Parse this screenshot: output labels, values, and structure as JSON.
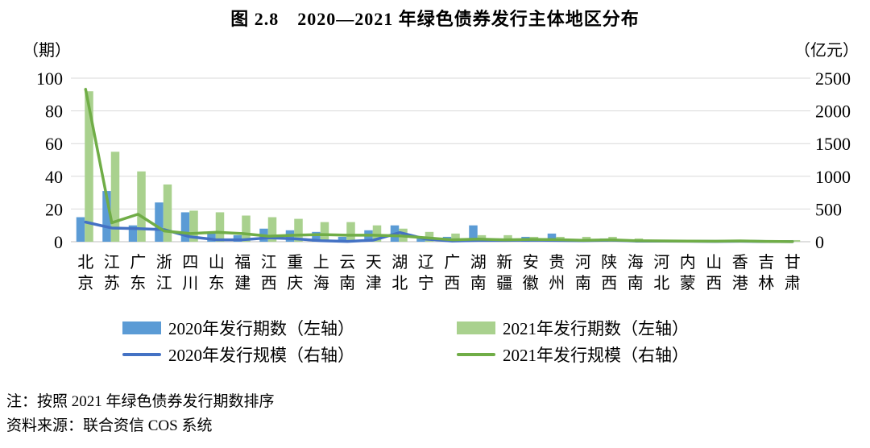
{
  "title": "图 2.8　2020—2021 年绿色债券发行主体地区分布",
  "notes": {
    "sort_note": "注：按照 2021 年绿色债券发行期数排序",
    "source_note": "资料来源：联合资信 COS 系统"
  },
  "chart_data": {
    "type": "bar",
    "subtype": "grouped-bars-with-overlaid-lines-dual-axis",
    "title": "图 2.8　2020—2021 年绿色债券发行主体地区分布",
    "grid": true,
    "legend_position": "bottom",
    "colors": {
      "bar_2020": "#5B9BD5",
      "bar_2021": "#A9D18E",
      "line_2020": "#4472C4",
      "line_2021": "#70AD47",
      "gridline": "#D9D9D9",
      "baseline": "#BFBFBF"
    },
    "left_axis": {
      "unit_label": "（期）",
      "ticks": [
        0,
        20,
        40,
        60,
        80,
        100
      ],
      "range": [
        0,
        100
      ]
    },
    "right_axis": {
      "unit_label": "（亿元）",
      "ticks": [
        0,
        500,
        1000,
        1500,
        2000,
        2500
      ],
      "range": [
        0,
        2500
      ]
    },
    "categories": [
      "北京",
      "江苏",
      "广东",
      "浙江",
      "四川",
      "山东",
      "福建",
      "江西",
      "重庆",
      "上海",
      "云南",
      "天津",
      "湖北",
      "辽宁",
      "广西",
      "湖南",
      "新疆",
      "安徽",
      "贵州",
      "河南",
      "陕西",
      "海南",
      "河北",
      "内蒙",
      "山西",
      "香港",
      "吉林",
      "甘肃"
    ],
    "series": [
      {
        "name": "2020年发行期数（左轴）",
        "type": "bar",
        "axis": "left",
        "color": "#5B9BD5",
        "values": [
          15,
          31,
          10,
          24,
          18,
          5,
          4,
          8,
          7,
          6,
          3,
          7,
          10,
          2,
          3,
          10,
          2,
          3,
          5,
          1,
          2,
          1,
          1,
          1,
          1,
          0,
          0,
          0
        ]
      },
      {
        "name": "2021年发行期数（左轴）",
        "type": "bar",
        "axis": "left",
        "color": "#A9D18E",
        "values": [
          92,
          55,
          43,
          35,
          19,
          18,
          16,
          15,
          14,
          12,
          12,
          10,
          8,
          6,
          5,
          4,
          4,
          3,
          3,
          3,
          3,
          2,
          1,
          1,
          1,
          1,
          1,
          1
        ]
      },
      {
        "name": "2020年发行规模（右轴）",
        "type": "line",
        "axis": "right",
        "color": "#4472C4",
        "values": [
          300,
          210,
          200,
          185,
          75,
          30,
          30,
          60,
          45,
          15,
          5,
          25,
          140,
          40,
          10,
          20,
          20,
          25,
          20,
          15,
          25,
          10,
          10,
          8,
          5,
          8,
          3,
          2
        ]
      },
      {
        "name": "2021年发行规模（右轴）",
        "type": "line",
        "axis": "right",
        "color": "#70AD47",
        "values": [
          2330,
          290,
          420,
          165,
          125,
          145,
          125,
          85,
          100,
          110,
          100,
          100,
          90,
          60,
          30,
          40,
          30,
          35,
          33,
          21,
          30,
          15,
          12,
          10,
          8,
          12,
          5,
          2
        ]
      }
    ]
  }
}
